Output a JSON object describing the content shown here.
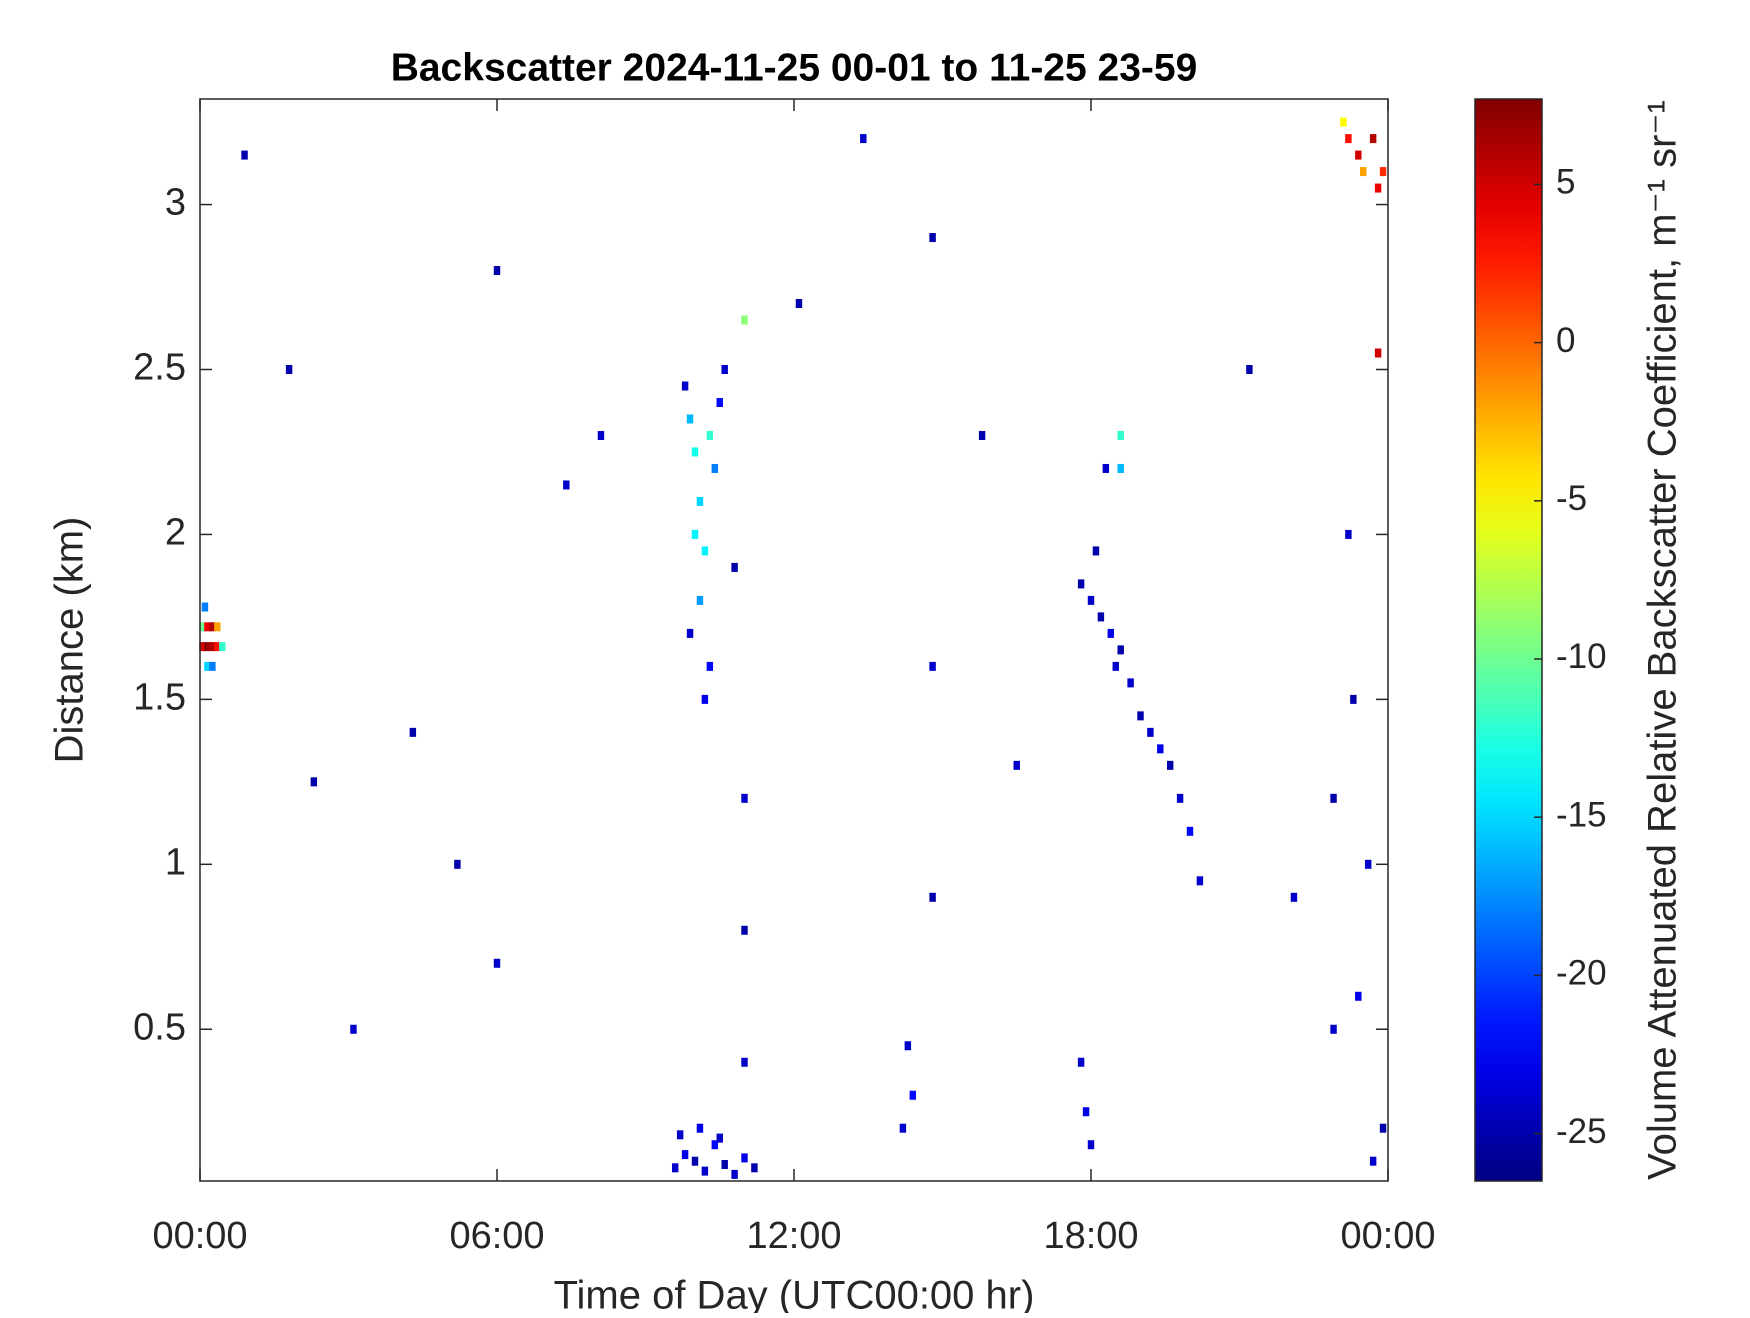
{
  "chart_data": {
    "type": "heatmap",
    "title": "Backscatter 2024-11-25 00-01 to 11-25 23-59",
    "x_label": "Time of Day (UTC00:00 hr)",
    "y_label": "Distance (km)",
    "colorbar_label": "Volume Attenuated Relative Backscatter Coefficient, m⁻¹ sr⁻¹",
    "colormap": "jet",
    "xlim": [
      0,
      24
    ],
    "xticks": [
      {
        "value": 0,
        "label": "00:00"
      },
      {
        "value": 6,
        "label": "06:00"
      },
      {
        "value": 12,
        "label": "12:00"
      },
      {
        "value": 18,
        "label": "18:00"
      },
      {
        "value": 24,
        "label": "00:00"
      }
    ],
    "ylim": [
      0.04,
      3.32
    ],
    "yticks": [
      0.5,
      1,
      1.5,
      2,
      2.5,
      3
    ],
    "clim": [
      -26.5,
      7.7
    ],
    "cticks": [
      -25,
      -20,
      -15,
      -10,
      -5,
      0,
      5
    ],
    "x": [
      0.05,
      0.15,
      0.25,
      0.35,
      0.05,
      0.15,
      0.25,
      0.35,
      0.45,
      0.15,
      0.25,
      0.1,
      9.8,
      9.9,
      10.0,
      10.1,
      10.2,
      10.3,
      10.4,
      10.5,
      9.9,
      10.1,
      10.3,
      10.6,
      10.8,
      11.0,
      10.2,
      10.0,
      9.6,
      9.8,
      10.0,
      10.2,
      10.4,
      10.6,
      10.8,
      11.0,
      11.2,
      9.7,
      10.1,
      10.5,
      17.8,
      18.0,
      18.2,
      18.4,
      18.6,
      18.8,
      19.0,
      19.2,
      19.4,
      19.6,
      19.8,
      20.0,
      20.2,
      18.1,
      18.5,
      18.3,
      23.1,
      23.2,
      23.4,
      23.5,
      23.7,
      23.8,
      23.9,
      23.8,
      23.2,
      23.3,
      23.6,
      23.4,
      23.9,
      23.7,
      11.0,
      11.0,
      11.0,
      14.3,
      14.4,
      14.2,
      14.8,
      14.8,
      14.8,
      17.8,
      17.9,
      18.0,
      22.9,
      22.9,
      0.9,
      1.8,
      3.1,
      4.3,
      6.0,
      6.0,
      5.2,
      2.3,
      7.4,
      8.1,
      12.1,
      13.4,
      15.8,
      16.5,
      21.2,
      22.1,
      18.6,
      18.6
    ],
    "y": [
      1.72,
      1.72,
      1.72,
      1.72,
      1.66,
      1.66,
      1.66,
      1.66,
      1.66,
      1.6,
      1.6,
      1.78,
      2.45,
      2.35,
      2.25,
      2.1,
      1.95,
      2.3,
      2.2,
      2.4,
      1.7,
      1.8,
      1.6,
      2.5,
      1.9,
      2.65,
      1.5,
      2.0,
      0.08,
      0.12,
      0.1,
      0.07,
      0.15,
      0.09,
      0.06,
      0.11,
      0.08,
      0.18,
      0.2,
      0.17,
      1.85,
      1.8,
      1.75,
      1.7,
      1.65,
      1.55,
      1.45,
      1.4,
      1.35,
      1.3,
      1.2,
      1.1,
      0.95,
      1.95,
      1.6,
      2.2,
      3.25,
      3.2,
      3.15,
      3.1,
      3.2,
      3.05,
      3.1,
      2.55,
      2.0,
      1.5,
      1.0,
      0.6,
      0.2,
      0.1,
      0.4,
      0.8,
      1.2,
      0.45,
      0.3,
      0.2,
      0.9,
      1.6,
      2.9,
      0.4,
      0.25,
      0.15,
      0.5,
      1.2,
      3.15,
      2.5,
      0.5,
      1.4,
      2.8,
      0.7,
      1.0,
      1.25,
      2.15,
      2.3,
      2.7,
      3.2,
      2.3,
      1.3,
      2.5,
      0.9,
      2.3,
      2.2
    ],
    "values": [
      -10,
      4,
      6,
      -2,
      5,
      7,
      6,
      3,
      -12,
      -15,
      -18,
      -18,
      -24,
      -16,
      -13,
      -15,
      -14,
      -12,
      -18,
      -22,
      -24,
      -17,
      -22,
      -24,
      -25,
      -9,
      -23,
      -14,
      -24,
      -23,
      -25,
      -24,
      -22,
      -25,
      -24,
      -23,
      -25,
      -24,
      -23,
      -24,
      -25,
      -24,
      -25,
      -23,
      -25,
      -24,
      -25,
      -24,
      -23,
      -25,
      -24,
      -22,
      -24,
      -25,
      -24,
      -24,
      -5,
      3,
      5,
      -2,
      6,
      4,
      2,
      5,
      -24,
      -25,
      -24,
      -23,
      -25,
      -24,
      -24,
      -25,
      -24,
      -24,
      -22,
      -24,
      -25,
      -24,
      -25,
      -24,
      -23,
      -24,
      -24,
      -25,
      -25,
      -25,
      -24,
      -25,
      -25,
      -24,
      -25,
      -25,
      -24,
      -24,
      -25,
      -24,
      -25,
      -24,
      -25,
      -24,
      -12,
      -16
    ]
  }
}
